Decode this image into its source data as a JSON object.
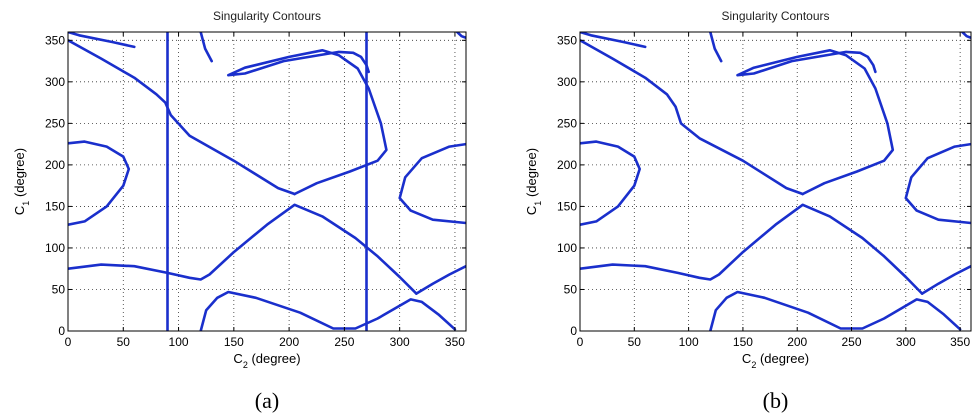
{
  "chart_data": [
    {
      "type": "line",
      "title": "Singularity Contours",
      "xlabel_main": "C",
      "xlabel_sub": "2",
      "xlabel_unit": " (degree)",
      "ylabel_main": "C",
      "ylabel_sub": "1",
      "ylabel_unit": " (degree)",
      "caption": "(a)",
      "xlim": [
        0,
        360
      ],
      "ylim": [
        0,
        360
      ],
      "xticks": [
        0,
        50,
        100,
        150,
        200,
        250,
        300,
        350
      ],
      "yticks": [
        0,
        50,
        100,
        150,
        200,
        250,
        300,
        350
      ],
      "grid": true,
      "color": "#1a2fcc",
      "series": [
        {
          "x": [
            0,
            30,
            60,
            80,
            88,
            93,
            110,
            150,
            190,
            205
          ],
          "y": [
            350,
            328,
            305,
            285,
            275,
            260,
            235,
            205,
            172,
            165
          ]
        },
        {
          "x": [
            205,
            225,
            255,
            280,
            288,
            283,
            272,
            262,
            245,
            230,
            200,
            160,
            145,
            160,
            195,
            245,
            258,
            265,
            270,
            272
          ],
          "y": [
            165,
            178,
            192,
            205,
            218,
            250,
            292,
            316,
            332,
            338,
            330,
            317,
            308,
            310,
            325,
            336,
            335,
            330,
            320,
            312
          ]
        },
        {
          "x": [
            0,
            10,
            40,
            60
          ],
          "y": [
            360,
            356,
            348,
            342
          ]
        },
        {
          "x": [
            0,
            15,
            35,
            50,
            55,
            50,
            35,
            15,
            0
          ],
          "y": [
            128,
            132,
            150,
            175,
            195,
            210,
            222,
            228,
            226
          ]
        },
        {
          "x": [
            0,
            30,
            60,
            90,
            110,
            120,
            128,
            150,
            180,
            205,
            230,
            260,
            280,
            300,
            315
          ],
          "y": [
            75,
            80,
            78,
            70,
            64,
            62,
            68,
            95,
            128,
            152,
            138,
            112,
            90,
            65,
            45
          ]
        },
        {
          "x": [
            315,
            330,
            345,
            360
          ],
          "y": [
            45,
            57,
            68,
            78
          ]
        },
        {
          "x": [
            120,
            125,
            135,
            145,
            170,
            210,
            240,
            260,
            280,
            310,
            320,
            335,
            350
          ],
          "y": [
            0,
            25,
            40,
            47,
            40,
            22,
            3,
            3,
            15,
            38,
            35,
            20,
            2
          ]
        },
        {
          "x": [
            360,
            345,
            320,
            305,
            300,
            310,
            330,
            360
          ],
          "y": [
            225,
            222,
            208,
            185,
            160,
            145,
            134,
            130
          ]
        },
        {
          "x": [
            352,
            356,
            360
          ],
          "y": [
            360,
            355,
            353
          ]
        },
        {
          "x": [
            120,
            122,
            124,
            130
          ],
          "y": [
            360,
            350,
            340,
            325
          ]
        }
      ],
      "vlines": [
        90,
        270
      ]
    },
    {
      "type": "line",
      "title": "Singularity Contours",
      "xlabel_main": "C",
      "xlabel_sub": "2",
      "xlabel_unit": " (degree)",
      "ylabel_main": "C",
      "ylabel_sub": "1",
      "ylabel_unit": " (degree)",
      "caption": "(b)",
      "xlim": [
        0,
        360
      ],
      "ylim": [
        0,
        360
      ],
      "xticks": [
        0,
        50,
        100,
        150,
        200,
        250,
        300,
        350
      ],
      "yticks": [
        0,
        50,
        100,
        150,
        200,
        250,
        300,
        350
      ],
      "grid": true,
      "color": "#1a2fcc",
      "series": [
        {
          "x": [
            0,
            30,
            60,
            80,
            88,
            93,
            110,
            150,
            190,
            205
          ],
          "y": [
            350,
            328,
            305,
            285,
            270,
            250,
            232,
            205,
            172,
            165
          ]
        },
        {
          "x": [
            205,
            225,
            255,
            280,
            288,
            283,
            272,
            262,
            245,
            230,
            200,
            160,
            145,
            160,
            195,
            245,
            258,
            265,
            270,
            272
          ],
          "y": [
            165,
            178,
            192,
            205,
            218,
            250,
            292,
            316,
            332,
            338,
            330,
            317,
            308,
            310,
            325,
            336,
            335,
            330,
            320,
            312
          ]
        },
        {
          "x": [
            0,
            10,
            40,
            60
          ],
          "y": [
            360,
            356,
            348,
            342
          ]
        },
        {
          "x": [
            0,
            15,
            35,
            50,
            55,
            50,
            35,
            15,
            0
          ],
          "y": [
            128,
            132,
            150,
            175,
            195,
            210,
            222,
            228,
            226
          ]
        },
        {
          "x": [
            0,
            30,
            60,
            90,
            110,
            120,
            128,
            150,
            180,
            205,
            230,
            260,
            280,
            300,
            315
          ],
          "y": [
            75,
            80,
            78,
            70,
            64,
            62,
            68,
            95,
            128,
            152,
            138,
            112,
            90,
            65,
            45
          ]
        },
        {
          "x": [
            315,
            330,
            345,
            360
          ],
          "y": [
            45,
            57,
            68,
            78
          ]
        },
        {
          "x": [
            120,
            125,
            135,
            145,
            170,
            210,
            240,
            260,
            280,
            310,
            320,
            335,
            350
          ],
          "y": [
            0,
            25,
            40,
            47,
            40,
            22,
            3,
            3,
            15,
            38,
            35,
            20,
            2
          ]
        },
        {
          "x": [
            360,
            345,
            320,
            305,
            300,
            310,
            330,
            360
          ],
          "y": [
            225,
            222,
            208,
            185,
            160,
            145,
            134,
            130
          ]
        },
        {
          "x": [
            352,
            356,
            360
          ],
          "y": [
            360,
            355,
            353
          ]
        },
        {
          "x": [
            120,
            122,
            124,
            130
          ],
          "y": [
            360,
            350,
            340,
            325
          ]
        }
      ],
      "vlines": []
    }
  ]
}
